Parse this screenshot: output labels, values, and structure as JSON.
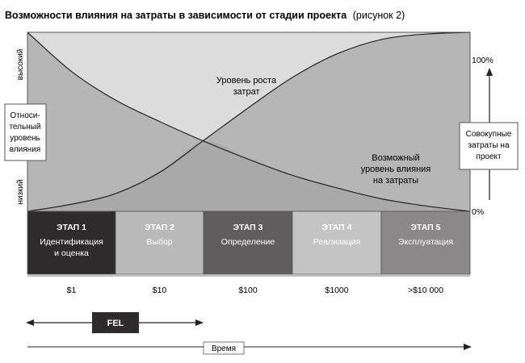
{
  "title": {
    "bold": "Возможности влияния на затраты в зависимости от стадии проекта",
    "normal": "(рисунок 2)"
  },
  "y_axis_left": {
    "top_label": "высокий",
    "bottom_label": "низкий",
    "box_lines": [
      "Относи-",
      "тельный",
      "уровень",
      "влияния"
    ]
  },
  "y_axis_right": {
    "top_label": "100%",
    "bottom_label": "0%",
    "box_lines": [
      "Совокупные",
      "затраты на",
      "проект"
    ]
  },
  "curve_labels": {
    "rising": [
      "Уровень роста",
      "затрат"
    ],
    "falling": [
      "Возможный",
      "уровень влияния",
      "на затраты"
    ]
  },
  "stages": [
    {
      "title": "ЭТАП 1",
      "lines": [
        "Идентификация",
        "и оценка"
      ],
      "fill": "#2e2b2c",
      "text": "#ffffff"
    },
    {
      "title": "ЭТАП 2",
      "lines": [
        "Выбор"
      ],
      "fill": "#b9b9b9",
      "text": "#ffffff"
    },
    {
      "title": "ЭТАП 3",
      "lines": [
        "Определение"
      ],
      "fill": "#5f5d5e",
      "text": "#ffffff"
    },
    {
      "title": "ЭТАП 4",
      "lines": [
        "Реализация"
      ],
      "fill": "#c4c4c4",
      "text": "#ffffff"
    },
    {
      "title": "ЭТАП 5",
      "lines": [
        "Эксплуатация"
      ],
      "fill": "#8a8889",
      "text": "#ffffff"
    }
  ],
  "costs": [
    "$1",
    "$10",
    "$100",
    "$1000",
    ">$10 000"
  ],
  "fel_label": "FEL",
  "time_label": "Время",
  "chart_data": {
    "type": "line",
    "x": [
      0,
      0.5,
      1,
      1.5,
      2,
      2.5,
      3,
      3.5,
      4,
      4.5,
      5
    ],
    "categories": [
      "ЭТАП 1",
      "ЭТАП 2",
      "ЭТАП 3",
      "ЭТАП 4",
      "ЭТАП 5"
    ],
    "series": [
      {
        "name": "Уровень роста затрат",
        "values": [
          0,
          0.04,
          0.1,
          0.22,
          0.4,
          0.58,
          0.75,
          0.88,
          0.96,
          0.99,
          1.0
        ],
        "axis": "right"
      },
      {
        "name": "Возможный уровень влияния на затраты",
        "values": [
          1.0,
          0.78,
          0.62,
          0.5,
          0.39,
          0.29,
          0.2,
          0.13,
          0.07,
          0.03,
          0.0
        ],
        "axis": "left"
      }
    ],
    "ylim": [
      0,
      1
    ],
    "fill_between": true,
    "grid": false,
    "legend": "none"
  },
  "colors": {
    "plot_bg_light": "#dcdcdc",
    "plot_bg_mid": "#b5b5b5",
    "frame": "#555555",
    "text": "#1a1a1a"
  }
}
